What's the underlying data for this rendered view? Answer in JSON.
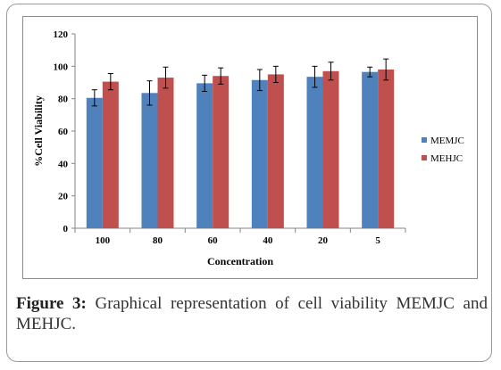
{
  "figure": {
    "caption_label": "Figure 3:",
    "caption_text": " Graphical representation of cell viability MEMJC and MEHJC."
  },
  "chart_data": {
    "type": "bar",
    "title": "",
    "xlabel": "Concentration",
    "ylabel": "%Cell Viability",
    "ylim": [
      0,
      120
    ],
    "yticks": [
      "0",
      "20",
      "40",
      "60",
      "80",
      "100",
      "120"
    ],
    "categories": [
      "100",
      "80",
      "60",
      "40",
      "20",
      "5"
    ],
    "series": [
      {
        "name": "MEMJC",
        "color": "#4f81bd",
        "values": [
          80.5,
          83.5,
          89.5,
          91.5,
          93.5,
          96.5
        ],
        "errors": [
          5.0,
          7.5,
          5.0,
          6.5,
          6.5,
          3.0
        ]
      },
      {
        "name": "MEHJC",
        "color": "#c0504d",
        "values": [
          90.5,
          93.0,
          94.0,
          95.0,
          97.0,
          98.0
        ],
        "errors": [
          5.0,
          6.5,
          5.0,
          5.0,
          5.5,
          6.5
        ]
      }
    ],
    "legend_position": "right",
    "grid": false
  }
}
